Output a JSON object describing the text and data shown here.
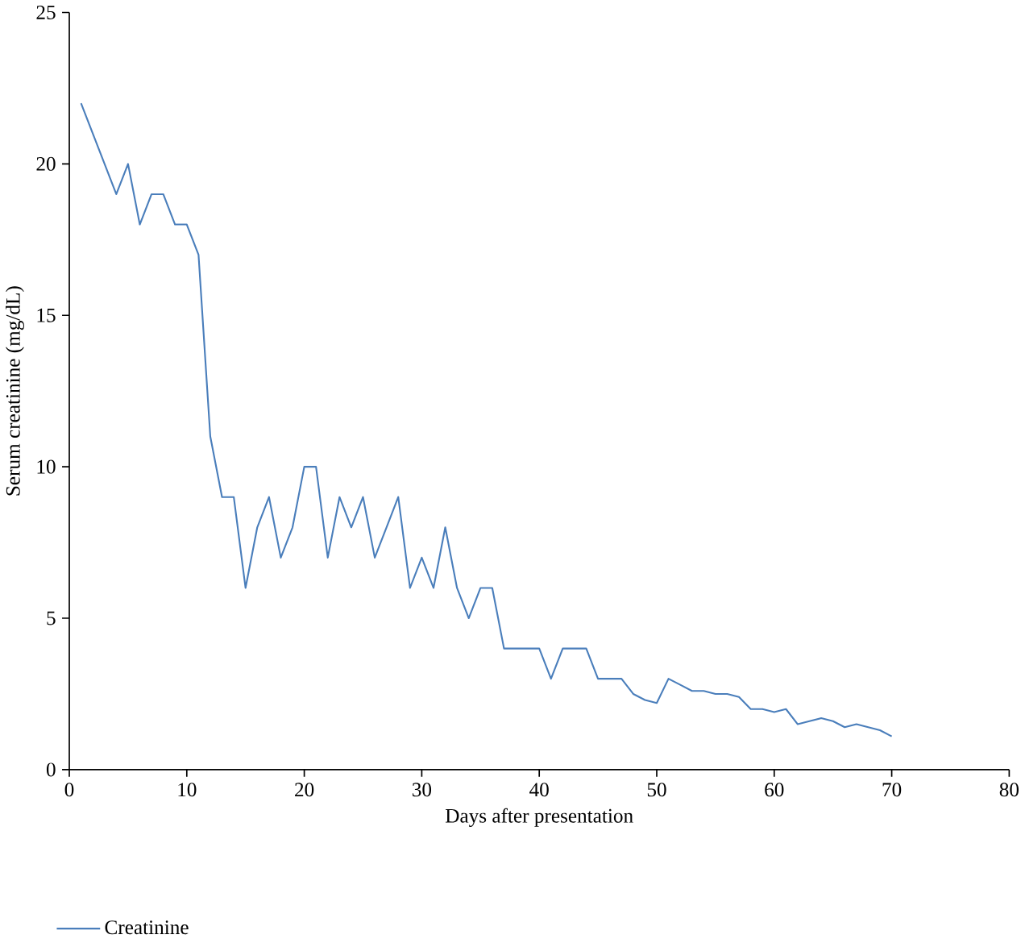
{
  "chart_data": {
    "type": "line",
    "xlabel": "Days after presentation",
    "ylabel": "Serum creatinine (mg/dL)",
    "xlim": [
      0,
      80
    ],
    "xticks": [
      0,
      10,
      20,
      30,
      40,
      50,
      60,
      70,
      80
    ],
    "ylim": [
      0,
      25
    ],
    "yticks": [
      0,
      5,
      10,
      15,
      20,
      25
    ],
    "grid": false,
    "legend": "bottom left",
    "line_style": "solid",
    "series": [
      {
        "name": "Creatinine",
        "color": "#4a7ebb",
        "x": [
          1,
          4,
          5,
          6,
          7,
          8,
          9,
          10,
          11,
          12,
          13,
          14,
          15,
          16,
          17,
          18,
          19,
          20,
          21,
          22,
          23,
          24,
          25,
          26,
          27,
          28,
          29,
          30,
          31,
          32,
          33,
          34,
          35,
          36,
          37,
          38,
          39,
          40,
          41,
          42,
          43,
          44,
          45,
          46,
          47,
          48,
          49,
          50,
          51,
          52,
          53,
          54,
          55,
          56,
          57,
          58,
          59,
          60,
          61,
          62,
          63,
          64,
          65,
          66,
          67,
          68,
          69,
          70
        ],
        "values": [
          22,
          19,
          20,
          18,
          19,
          19,
          18,
          18,
          17,
          11,
          9,
          9,
          6,
          8,
          9,
          7,
          8,
          10,
          10,
          7,
          9,
          8,
          9,
          7,
          8,
          9,
          6,
          7,
          6,
          8,
          6,
          5,
          6,
          6,
          4,
          4,
          4,
          4,
          3,
          4,
          4,
          4,
          3,
          3,
          3,
          2.5,
          2.3,
          2.2,
          3,
          2.8,
          2.6,
          2.6,
          2.5,
          2.5,
          2.4,
          2,
          2,
          1.9,
          2,
          1.5,
          1.6,
          1.7,
          1.6,
          1.4,
          1.5,
          1.4,
          1.3,
          1.1
        ]
      }
    ]
  }
}
